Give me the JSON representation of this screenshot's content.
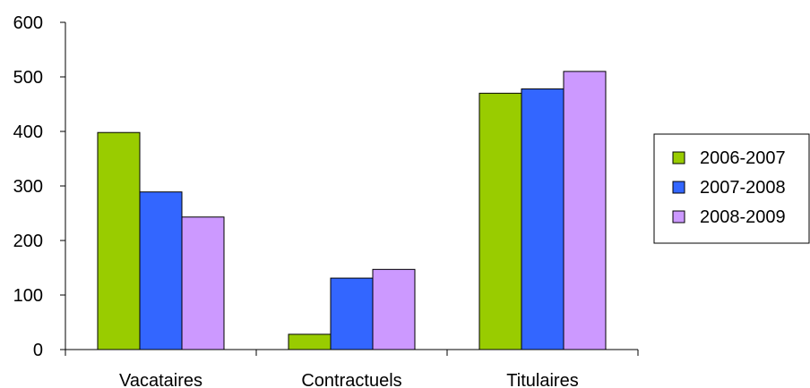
{
  "chart_data": {
    "type": "bar",
    "categories": [
      "Vacataires",
      "Contractuels",
      "Titulaires"
    ],
    "series": [
      {
        "name": "2006-2007",
        "values": [
          398,
          28,
          470
        ],
        "color": "#99CC00"
      },
      {
        "name": "2007-2008",
        "values": [
          289,
          131,
          478
        ],
        "color": "#3366FF"
      },
      {
        "name": "2008-2009",
        "values": [
          243,
          147,
          510
        ],
        "color": "#CC99FF"
      }
    ],
    "yticks": [
      "0",
      "100",
      "200",
      "300",
      "400",
      "500",
      "600"
    ],
    "ylim": [
      0,
      600
    ],
    "grid": false,
    "legend_position": "right"
  }
}
